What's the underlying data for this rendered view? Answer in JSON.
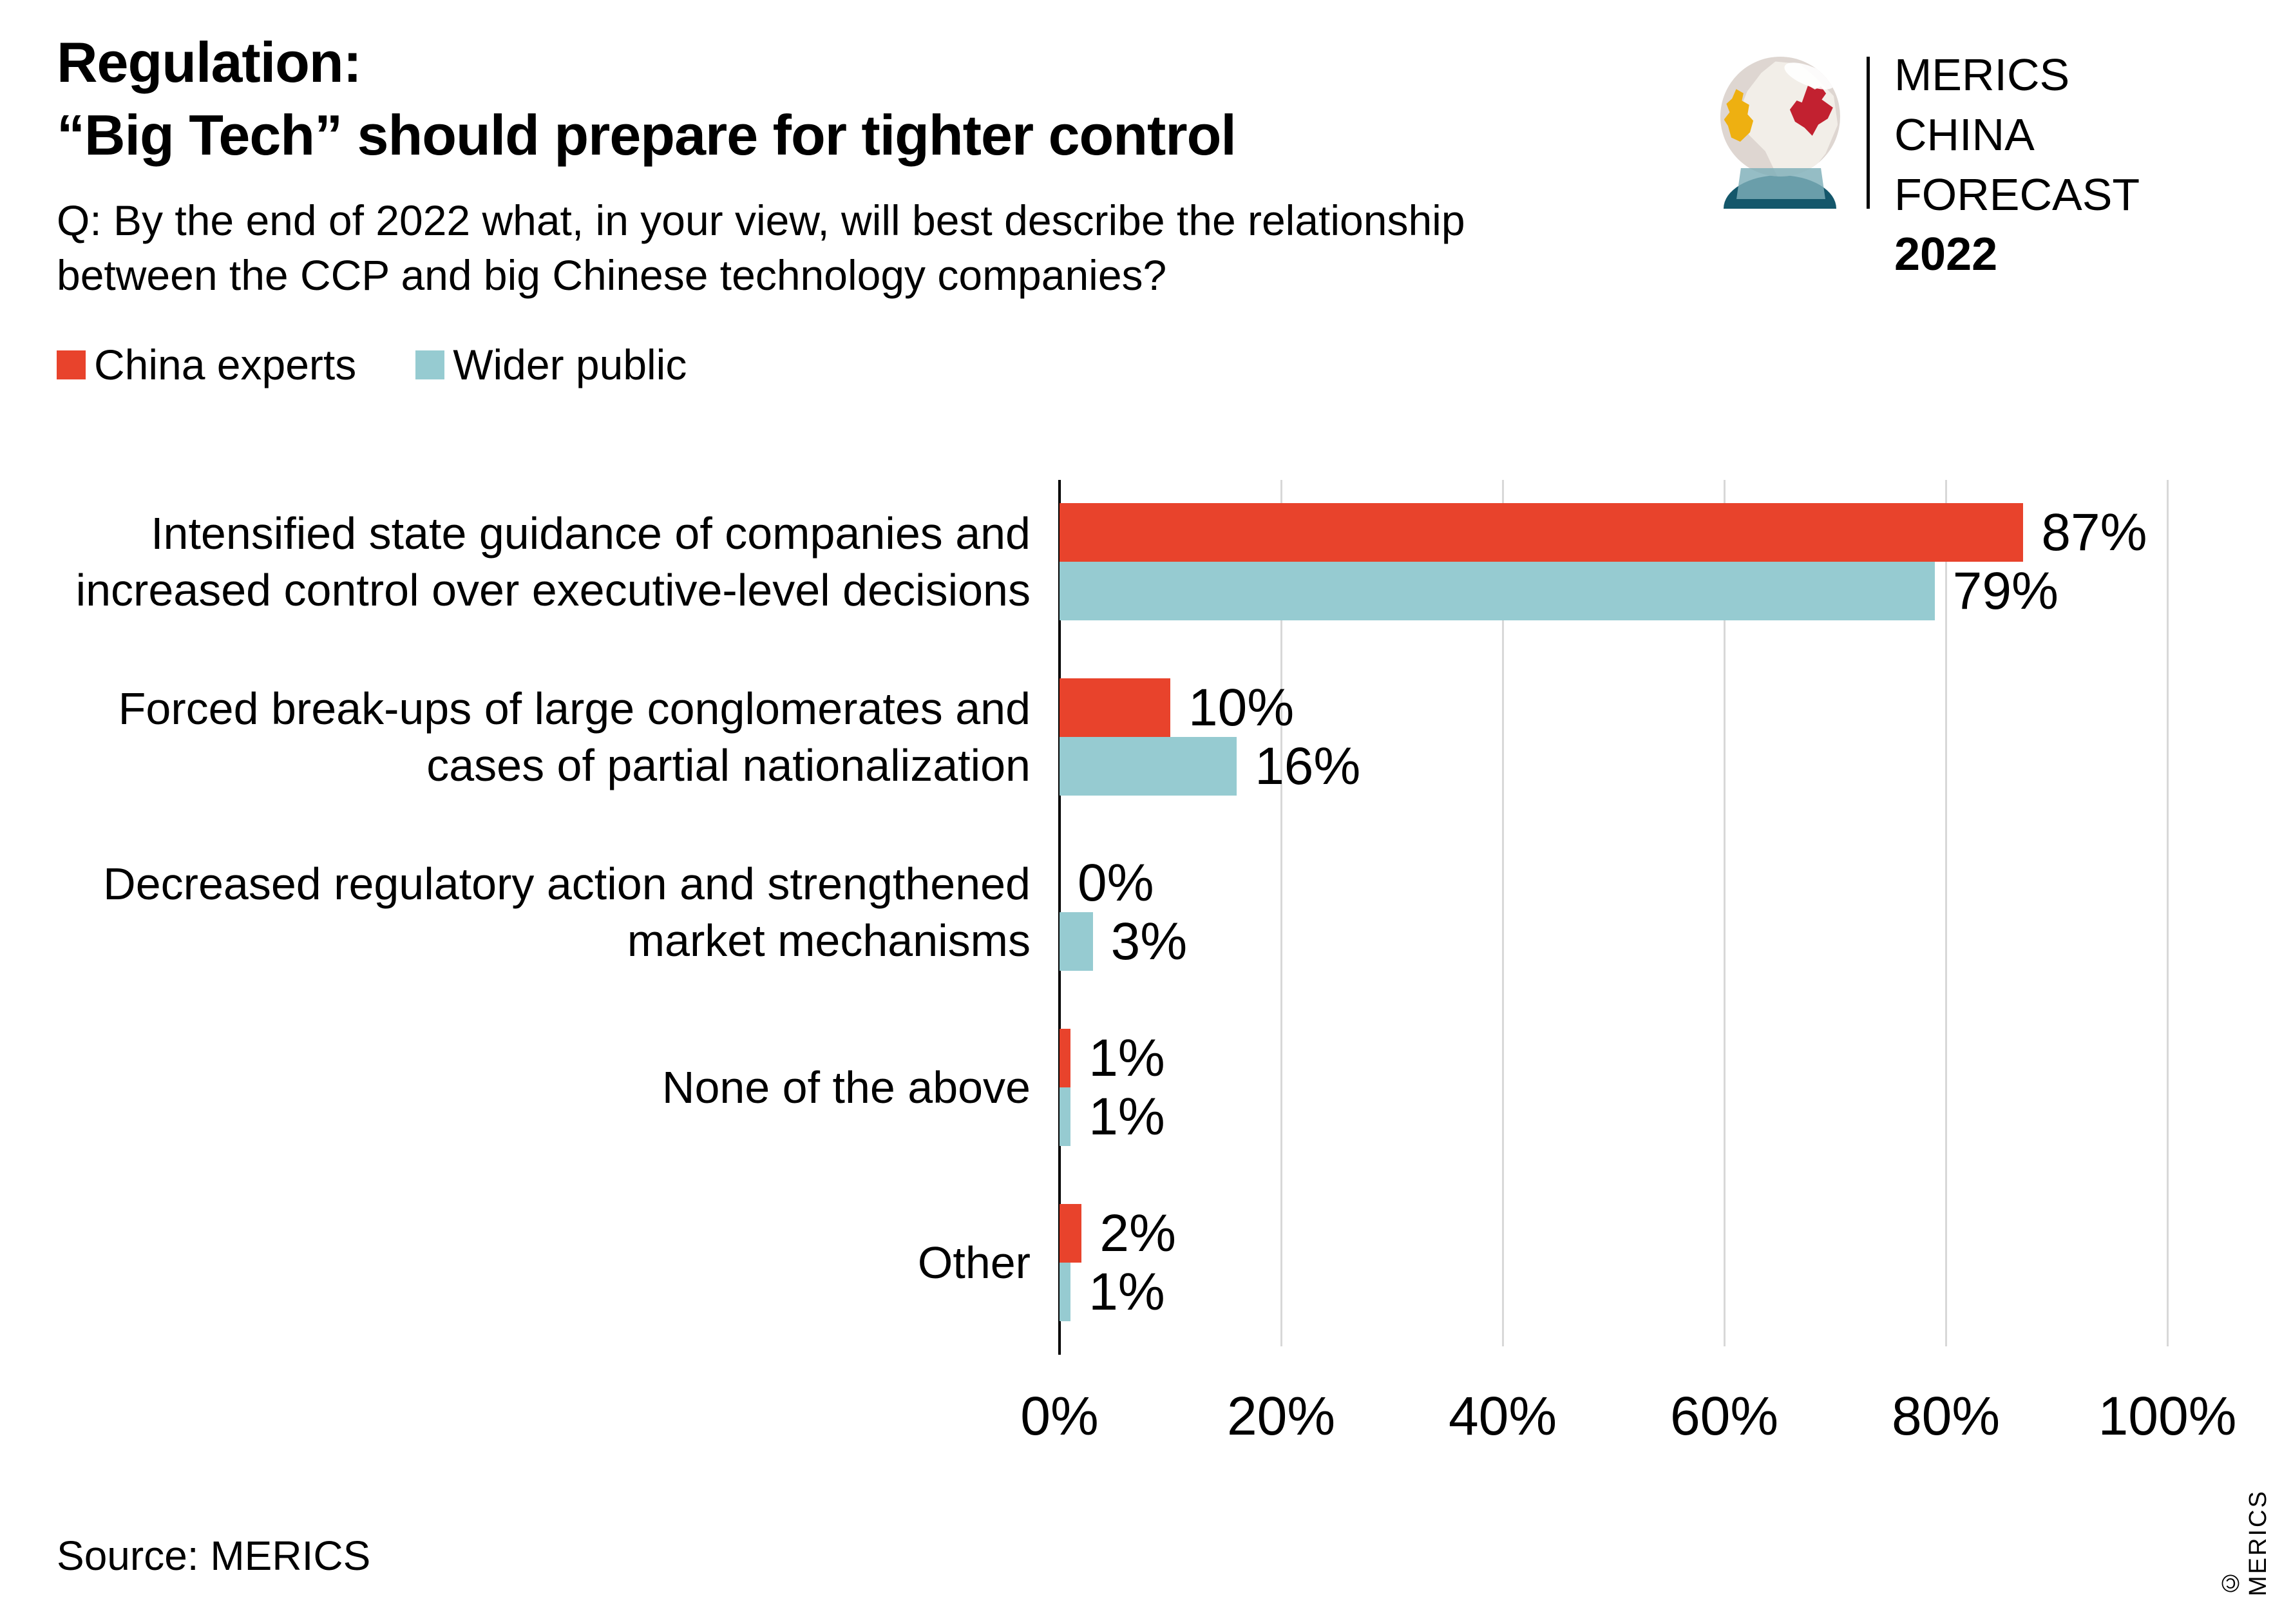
{
  "header": {
    "title_line1": "Regulation:",
    "title_line2": "“Big Tech” should prepare for tighter control",
    "subtitle_line1": "Q: By the end of 2022 what, in your view, will best describe the relationship",
    "subtitle_line2": "between the CCP and big Chinese technology companies?"
  },
  "logo": {
    "brand_line1": "MERICS",
    "brand_line2": "CHINA FORECAST",
    "brand_line3": "2022"
  },
  "legend": {
    "items": [
      {
        "label": "China experts",
        "color": "#e8432c"
      },
      {
        "label": "Wider public",
        "color": "#96cbd1"
      }
    ]
  },
  "footer": {
    "source": "Source: MERICS",
    "copyright": "© MERICS"
  },
  "chart_data": {
    "type": "bar",
    "orientation": "horizontal",
    "title": "Regulation: “Big Tech” should prepare for tighter control",
    "categories": [
      [
        "Intensified state guidance of companies and",
        "increased control over executive-level decisions"
      ],
      [
        "Forced break-ups of large conglomerates and",
        "cases of partial nationalization"
      ],
      [
        "Decreased regulatory action and strengthened",
        "market mechanisms"
      ],
      [
        "None of the above"
      ],
      [
        "Other"
      ]
    ],
    "series": [
      {
        "name": "China experts",
        "color": "#e8432c",
        "values": [
          87,
          10,
          0,
          1,
          2
        ]
      },
      {
        "name": "Wider public",
        "color": "#96cbd1",
        "values": [
          79,
          16,
          3,
          1,
          1
        ]
      }
    ],
    "unit": "%",
    "x_ticks": [
      "0%",
      "20%",
      "40%",
      "60%",
      "80%",
      "100%"
    ],
    "xlim": [
      0,
      100
    ],
    "grid": true,
    "legend_position": "top-left"
  }
}
